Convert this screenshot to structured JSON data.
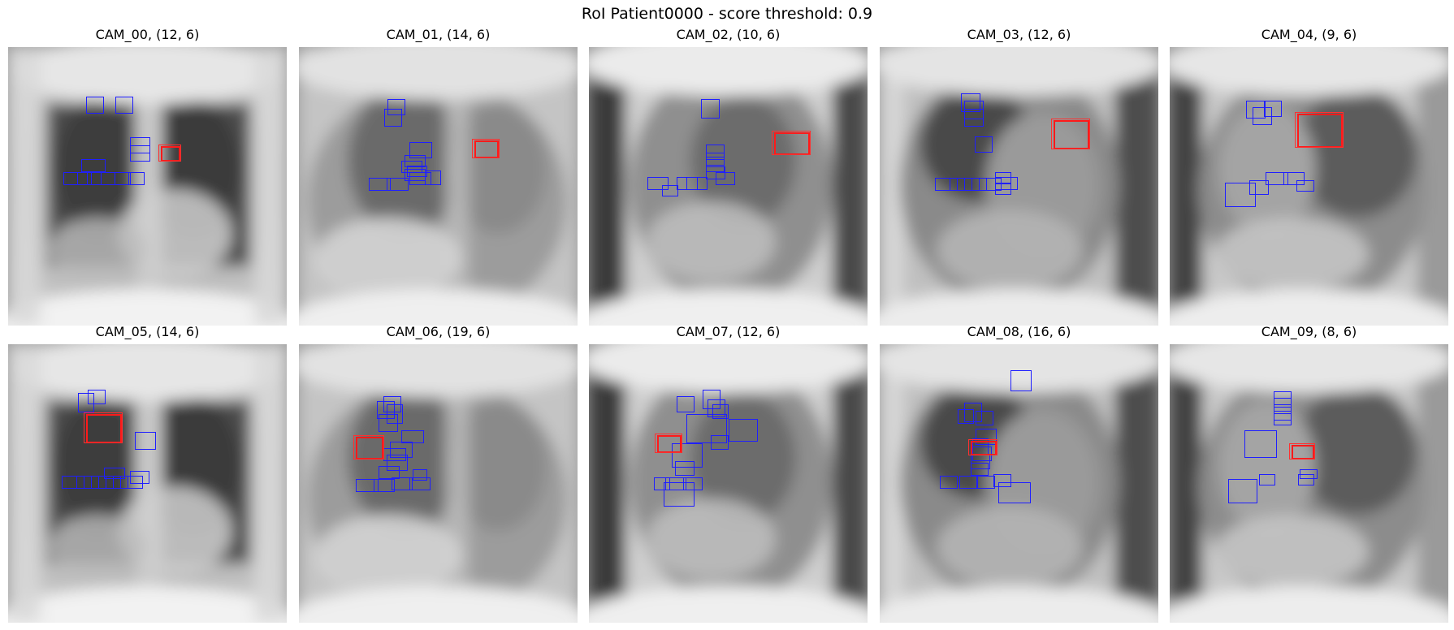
{
  "title": "RoI Patient0000 - score threshold: 0.9",
  "colors": {
    "detection_box": "#1f1fff",
    "roi_box": "#ff1a1a",
    "background": "#ffffff"
  },
  "panels": [
    {
      "id": "CAM_00",
      "label": "CAM_00, (12, 6)",
      "view": "frontal"
    },
    {
      "id": "CAM_01",
      "label": "CAM_01, (14, 6)",
      "view": "oblique-left"
    },
    {
      "id": "CAM_02",
      "label": "CAM_02, (10, 6)",
      "view": "lateral"
    },
    {
      "id": "CAM_03",
      "label": "CAM_03, (12, 6)",
      "view": "lateral-dark"
    },
    {
      "id": "CAM_04",
      "label": "CAM_04, (9, 6)",
      "view": "oblique-right"
    },
    {
      "id": "CAM_05",
      "label": "CAM_05, (14, 6)",
      "view": "frontal"
    },
    {
      "id": "CAM_06",
      "label": "CAM_06, (19, 6)",
      "view": "oblique-left"
    },
    {
      "id": "CAM_07",
      "label": "CAM_07, (12, 6)",
      "view": "lateral"
    },
    {
      "id": "CAM_08",
      "label": "CAM_08, (16, 6)",
      "view": "lateral-dark"
    },
    {
      "id": "CAM_09",
      "label": "CAM_09, (8, 6)",
      "view": "oblique-right"
    }
  ]
}
